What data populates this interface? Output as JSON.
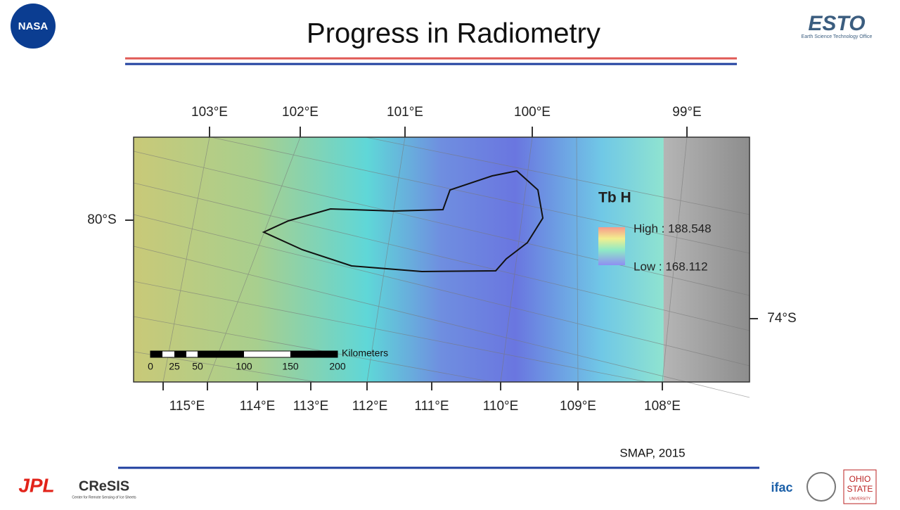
{
  "header": {
    "title": "Progress in Radiometry",
    "left_logo": "NASA",
    "right_logo": "ESTO",
    "right_logo_sub": "Earth Science Technology Office"
  },
  "map": {
    "top_labels": [
      "103°E",
      "102°E",
      "101°E",
      "100°E",
      "99°E"
    ],
    "bottom_labels": [
      "115°E",
      "114°E",
      "113°E",
      "112°E",
      "111°E",
      "110°E",
      "109°E",
      "108°E"
    ],
    "left_label": "80°S",
    "right_label": "74°S",
    "legend": {
      "title": "Tb H",
      "high": "High : 188.548",
      "low": "Low : 168.112"
    },
    "scale": {
      "unit": "Kilometers",
      "labels": [
        "0",
        "25",
        "50",
        "100",
        "150",
        "200"
      ]
    }
  },
  "caption": "SMAP, 2015",
  "footer": {
    "logos": [
      "JPL",
      "CReSIS",
      "Center for Remote Sensing of Ice Sheets",
      "ifac",
      "OHIO",
      "STATE",
      "UNIVERSITY"
    ]
  }
}
